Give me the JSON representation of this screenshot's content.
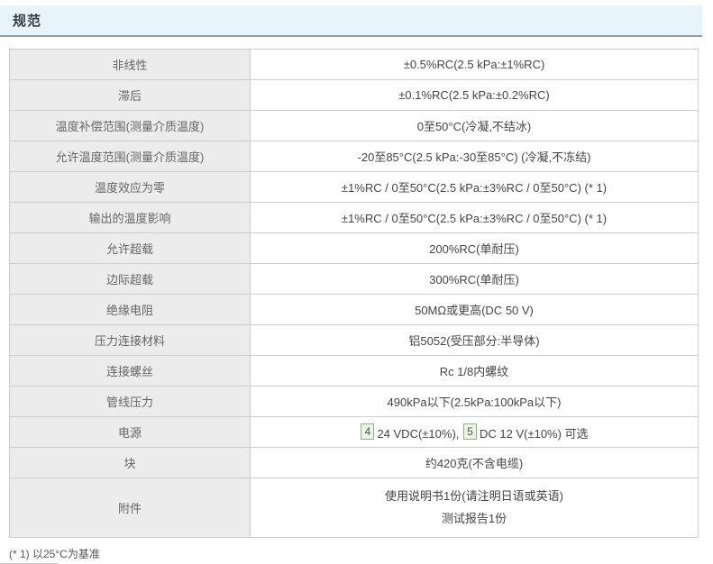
{
  "page": {
    "title": "规范",
    "footnote": "(* 1) 以25°C为基准"
  },
  "colors": {
    "header_bg": "#e8f4fb",
    "header_border": "#9a9a9a",
    "table_border": "#cccccc",
    "label_cell_bg": "#ececec",
    "label_text": "#666666",
    "value_text": "#444444",
    "badge_bg": "#ecf5df",
    "badge_border": "#98a88e"
  },
  "table": {
    "rows": [
      {
        "label": "非线性",
        "value": "±0.5%RC(2.5 kPa:±1%RC)"
      },
      {
        "label": "滞后",
        "value": "±0.1%RC(2.5 kPa:±0.2%RC)"
      },
      {
        "label": "温度补偿范围(测量介质温度)",
        "value": "0至50°C(冷凝,不结冰)"
      },
      {
        "label": "允许温度范围(测量介质温度)",
        "value": "-20至85°C(2.5 kPa:-30至85°C) (冷凝,不冻结)"
      },
      {
        "label": "温度效应为零",
        "value": "±1%RC / 0至50°C(2.5 kPa:±3%RC / 0至50°C) (* 1)"
      },
      {
        "label": "输出的温度影响",
        "value": "±1%RC / 0至50°C(2.5 kPa:±3%RC / 0至50°C) (* 1)"
      },
      {
        "label": "允许超载",
        "value": "200%RC(单耐压)"
      },
      {
        "label": "边际超载",
        "value": "300%RC(单耐压)"
      },
      {
        "label": "绝缘电阻",
        "value": "50MΩ或更高(DC 50 V)"
      },
      {
        "label": "压力连接材料",
        "value": "铝5052(受压部分:半导体)"
      },
      {
        "label": "连接螺丝",
        "value": "Rc 1/8内螺纹"
      },
      {
        "label": "管线压力",
        "value": "490kPa以下(2.5kPa:100kPa以下)"
      }
    ],
    "power_row": {
      "label": "电源",
      "badge1": "4",
      "text1": "24 VDC(±10%), ",
      "badge2": "5",
      "text2": "DC 12 V(±10%) 可选"
    },
    "mass_row": {
      "label": "块",
      "value": "约420克(不含电缆)"
    },
    "accessories_row": {
      "label": "附件",
      "line1": "使用说明书1份(请注明日语或英语)",
      "line2": "测试报告1份"
    }
  }
}
